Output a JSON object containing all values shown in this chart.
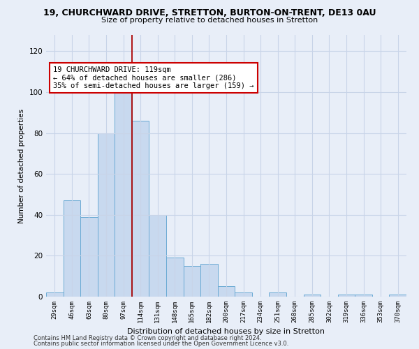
{
  "title1": "19, CHURCHWARD DRIVE, STRETTON, BURTON-ON-TRENT, DE13 0AU",
  "title2": "Size of property relative to detached houses in Stretton",
  "xlabel": "Distribution of detached houses by size in Stretton",
  "ylabel": "Number of detached properties",
  "categories": [
    "29sqm",
    "46sqm",
    "63sqm",
    "80sqm",
    "97sqm",
    "114sqm",
    "131sqm",
    "148sqm",
    "165sqm",
    "182sqm",
    "200sqm",
    "217sqm",
    "234sqm",
    "251sqm",
    "268sqm",
    "285sqm",
    "302sqm",
    "319sqm",
    "336sqm",
    "353sqm",
    "370sqm"
  ],
  "values": [
    2,
    47,
    39,
    80,
    100,
    86,
    40,
    19,
    15,
    16,
    5,
    2,
    0,
    2,
    0,
    1,
    0,
    1,
    1,
    0,
    1
  ],
  "bar_color": "#c8d9ef",
  "bar_edge_color": "#6aaad4",
  "vline_color": "#aa0000",
  "vline_x": 4.5,
  "annotation_text": "19 CHURCHWARD DRIVE: 119sqm\n← 64% of detached houses are smaller (286)\n35% of semi-detached houses are larger (159) →",
  "annotation_box_color": "#ffffff",
  "annotation_box_edge": "#cc0000",
  "ylim": [
    0,
    128
  ],
  "yticks": [
    0,
    20,
    40,
    60,
    80,
    100,
    120
  ],
  "grid_color": "#c8d4e8",
  "background_color": "#e8eef8",
  "footer1": "Contains HM Land Registry data © Crown copyright and database right 2024.",
  "footer2": "Contains public sector information licensed under the Open Government Licence v3.0."
}
